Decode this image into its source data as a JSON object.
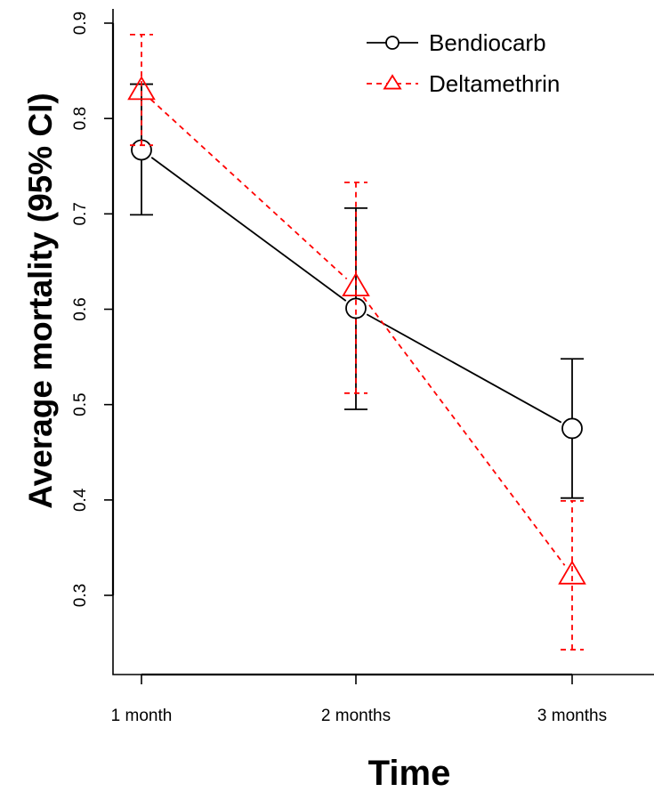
{
  "chart_data": {
    "type": "line",
    "title": "",
    "xlabel": "Time",
    "ylabel": "Average mortality  (95% CI)",
    "categories": [
      "1 month",
      "2 months",
      "3 months"
    ],
    "ylim": [
      0.3,
      0.9
    ],
    "yticks": [
      "0.3",
      "0.4",
      "0.5",
      "0.6",
      "0.7",
      "0.8",
      "0.9"
    ],
    "grid": false,
    "legend_position": "top-right",
    "series": [
      {
        "name": "Bendiocarb",
        "color": "#000000",
        "marker": "circle",
        "line_style": "solid",
        "values": [
          0.767,
          0.601,
          0.475
        ],
        "ci_low": [
          0.699,
          0.495,
          0.402
        ],
        "ci_high": [
          0.836,
          0.706,
          0.548
        ]
      },
      {
        "name": "Deltamethrin",
        "color": "#ff0000",
        "marker": "triangle",
        "line_style": "dashed",
        "values": [
          0.829,
          0.623,
          0.321
        ],
        "ci_low": [
          0.772,
          0.512,
          0.243
        ],
        "ci_high": [
          0.888,
          0.733,
          0.399
        ]
      }
    ]
  }
}
